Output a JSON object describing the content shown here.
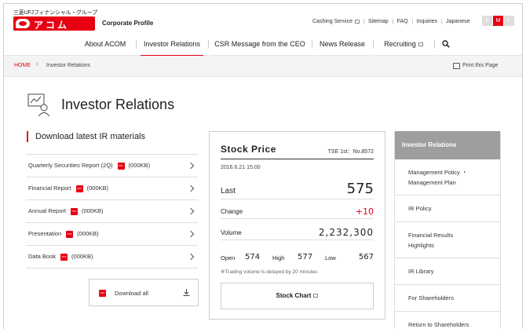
{
  "header": {
    "brand_kana": "三菱UFJフィナンシャル・グループ",
    "logo_text": "アコム",
    "corporate_profile": "Corporate Profile",
    "utility_links": [
      "Cashing Service",
      "Sitemap",
      "FAQ",
      "Inquiries",
      "Japanese"
    ],
    "font_sizes": [
      "S",
      "M",
      "L"
    ],
    "active_font_size": "M",
    "accent_color": "#e60012"
  },
  "nav": {
    "items": [
      "About ACOM",
      "Investor Relations",
      "CSR Message from the CEO",
      "News Release",
      "Recruiting"
    ],
    "active": "Investor Relations"
  },
  "breadcrumb": {
    "home": "HOME",
    "separator": ">",
    "current": "Investor Relations",
    "print": "Print this Page"
  },
  "page": {
    "title": "Investor Relations"
  },
  "downloads": {
    "heading": "Download latest IR materials",
    "items": [
      {
        "label": "Quarterly Securities Report (2Q)",
        "badge": "PDF",
        "size": "(000KB)"
      },
      {
        "label": "Financial Report",
        "badge": "PDF",
        "size": "(000KB)"
      },
      {
        "label": "Annual Report",
        "badge": "PDF",
        "size": "(000KB)"
      },
      {
        "label": "Presentation",
        "badge": "PDF",
        "size": "(000KB)"
      },
      {
        "label": "Data Book",
        "badge": "PDF",
        "size": "(000KB)"
      }
    ],
    "download_all": "Download all"
  },
  "stock": {
    "title": "Stock Price",
    "exchange_code": "TSE 1st：No.8572",
    "date": "2016.6.21 15:00",
    "last_label": "Last",
    "last_value": "575",
    "change_label": "Change",
    "change_value": "+10",
    "volume_label": "Volume",
    "volume_value": "2,232,300",
    "open_label": "Open",
    "open_value": "574",
    "high_label": "High",
    "high_value": "577",
    "low_label": "Low",
    "low_value": "567",
    "note": "※Trading volume is delayed by 20 minutes",
    "chart_button": "Stock Chart"
  },
  "sidebar": {
    "heading": "Investor Relations",
    "items": [
      {
        "line1": "Management Policy ・",
        "line2": "Management Plan"
      },
      {
        "line1": "IR Policy",
        "line2": ""
      },
      {
        "line1": "Financial Results",
        "line2": "Highlights"
      },
      {
        "line1": "IR Library",
        "line2": ""
      },
      {
        "line1": "For Shareholders",
        "line2": ""
      },
      {
        "line1": "Return to Shareholders",
        "line2": ""
      }
    ]
  }
}
